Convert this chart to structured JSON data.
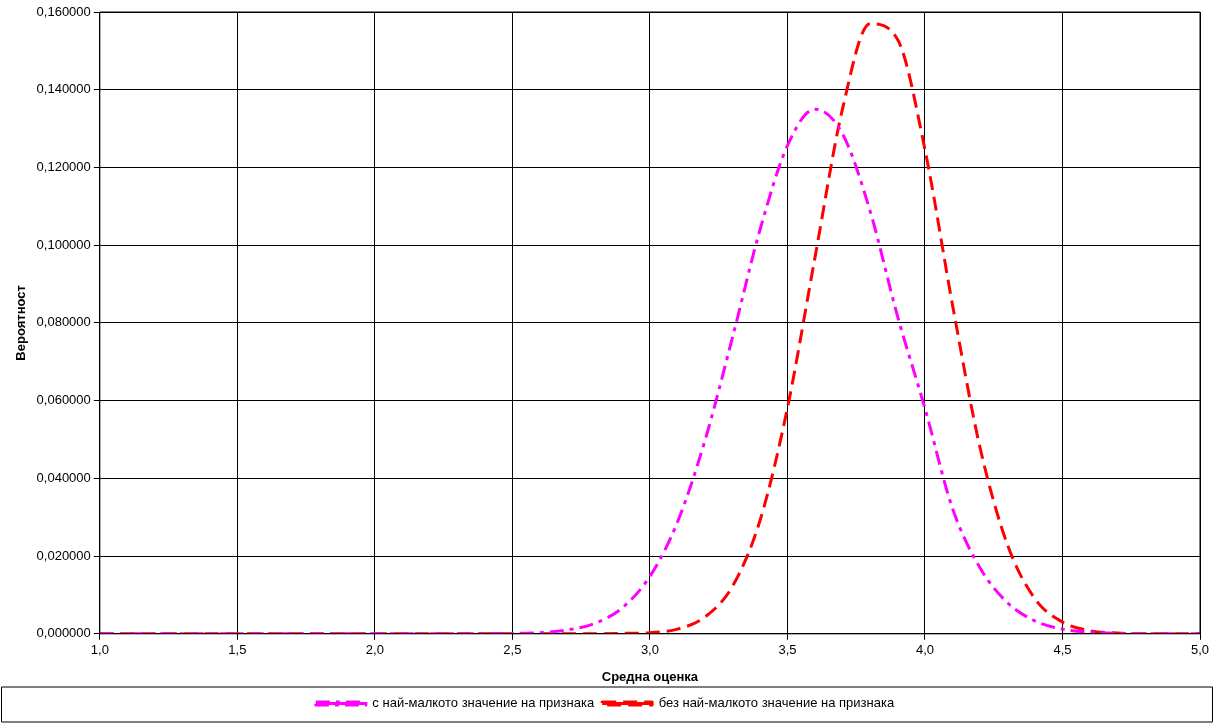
{
  "chart_data": {
    "type": "line",
    "xlabel": "Средна оценка",
    "ylabel": "Вероятност",
    "x": [
      1.0,
      1.5,
      2.0,
      2.5,
      2.6,
      2.7,
      2.8,
      2.9,
      3.0,
      3.1,
      3.2,
      3.3,
      3.4,
      3.5,
      3.6,
      3.7,
      3.8,
      3.9,
      4.0,
      4.1,
      4.2,
      4.3,
      4.4,
      4.5,
      4.6,
      4.7,
      4.8,
      5.0
    ],
    "series": [
      {
        "name": "с най-малкото значение на признака",
        "color": "#ff00ff",
        "line_style": "dashdot",
        "values": [
          0,
          0,
          0,
          0.0001,
          0.0003,
          0.001,
          0.0027,
          0.0067,
          0.0148,
          0.0287,
          0.0497,
          0.0762,
          0.1039,
          0.1256,
          0.135,
          0.1287,
          0.1089,
          0.0818,
          0.058,
          0.0323,
          0.017,
          0.008,
          0.0033,
          0.0012,
          0.0004,
          0.0001,
          0,
          0
        ]
      },
      {
        "name": "без най-малкото значение на признака",
        "color": "#ff0000",
        "line_style": "dashed",
        "values": [
          0,
          0,
          0,
          0,
          0,
          0,
          0,
          0.0001,
          0.0003,
          0.0012,
          0.0043,
          0.0122,
          0.0291,
          0.0581,
          0.0968,
          0.135,
          0.157,
          0.153,
          0.1246,
          0.0847,
          0.048,
          0.0229,
          0.009,
          0.003,
          0.0008,
          0.0002,
          0,
          0
        ]
      }
    ],
    "xlim": [
      1.0,
      5.0
    ],
    "xticks": [
      {
        "value": 1.0,
        "label": "1,0"
      },
      {
        "value": 1.5,
        "label": "1,5"
      },
      {
        "value": 2.0,
        "label": "2,0"
      },
      {
        "value": 2.5,
        "label": "2,5"
      },
      {
        "value": 3.0,
        "label": "3,0"
      },
      {
        "value": 3.5,
        "label": "3,5"
      },
      {
        "value": 4.0,
        "label": "4,0"
      },
      {
        "value": 4.5,
        "label": "4,5"
      },
      {
        "value": 5.0,
        "label": "5,0"
      }
    ],
    "ylim": [
      0,
      0.16
    ],
    "yticks": [
      {
        "value": 0,
        "label": "0,000000"
      },
      {
        "value": 0.02,
        "label": "0,020000"
      },
      {
        "value": 0.04,
        "label": "0,040000"
      },
      {
        "value": 0.06,
        "label": "0,060000"
      },
      {
        "value": 0.08,
        "label": "0,080000"
      },
      {
        "value": 0.1,
        "label": "0,100000"
      },
      {
        "value": 0.12,
        "label": "0,120000"
      },
      {
        "value": 0.14,
        "label": "0,140000"
      },
      {
        "value": 0.16,
        "label": "0,160000"
      }
    ],
    "grid": true,
    "legend": "bottom",
    "marker": "none"
  }
}
